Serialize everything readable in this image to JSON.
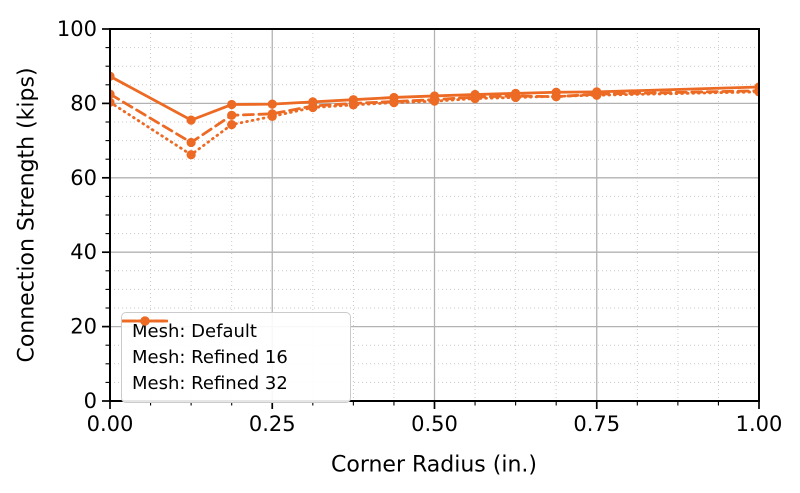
{
  "chart_data": {
    "type": "line",
    "title": "",
    "xlabel": "Corner Radius (in.)",
    "ylabel": "Connection Strength (kips)",
    "xlim": [
      0,
      1
    ],
    "ylim": [
      0,
      100
    ],
    "x_major_ticks": [
      0,
      0.25,
      0.5,
      0.75,
      1.0
    ],
    "x_major_tick_labels": [
      "0.00",
      "0.25",
      "0.50",
      "0.75",
      "1.00"
    ],
    "x_minor_step": 0.0625,
    "y_major_ticks": [
      0,
      20,
      40,
      60,
      80,
      100
    ],
    "y_major_tick_labels": [
      "0",
      "20",
      "40",
      "60",
      "80",
      "100"
    ],
    "y_minor_step": 5,
    "grid": "major-solid, minor-dotted",
    "legend_position": "lower-left",
    "colors": {
      "series_orange": "#ec6a24",
      "grid_major": "#b2b2b2",
      "grid_minor": "#c9c9c9",
      "spine": "#000000",
      "text": "#000000",
      "legend_border": "#cbcbcb"
    },
    "x": [
      0,
      0.125,
      0.1875,
      0.25,
      0.3125,
      0.375,
      0.4375,
      0.5,
      0.5625,
      0.625,
      0.6875,
      0.75,
      1.0
    ],
    "series": [
      {
        "name": "Mesh: Default",
        "style": "solid",
        "values": [
          87.3,
          75.5,
          79.7,
          79.8,
          80.4,
          81.0,
          81.6,
          82.0,
          82.4,
          82.7,
          83.0,
          83.1,
          84.4
        ]
      },
      {
        "name": "Mesh: Refined 16",
        "style": "dashed",
        "values": [
          82.5,
          69.5,
          76.8,
          77.2,
          79.3,
          80.0,
          80.5,
          81.0,
          81.7,
          82.0,
          81.8,
          82.5,
          83.4
        ]
      },
      {
        "name": "Mesh: Refined 32",
        "style": "dotted",
        "values": [
          80.3,
          66.2,
          74.3,
          76.5,
          78.9,
          79.6,
          80.2,
          80.6,
          81.3,
          81.6,
          81.9,
          82.2,
          83.1
        ]
      }
    ]
  }
}
